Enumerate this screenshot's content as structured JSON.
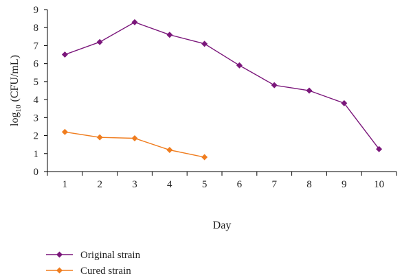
{
  "chart_data": {
    "type": "line",
    "title": "",
    "xlabel": "Day",
    "ylabel": "log10 (CFU/mL)",
    "ylabel_base": "log",
    "ylabel_sub": "10",
    "ylabel_rest": " (CFU/mL)",
    "xlim": [
      0.5,
      10.5
    ],
    "ylim": [
      0,
      9
    ],
    "x_ticks": [
      "1",
      "2",
      "3",
      "4",
      "5",
      "6",
      "7",
      "8",
      "9",
      "10"
    ],
    "y_ticks": [
      "0",
      "1",
      "2",
      "3",
      "4",
      "5",
      "6",
      "7",
      "8",
      "9"
    ],
    "grid": false,
    "legend_position": "bottom-left",
    "series": [
      {
        "name": "Original strain",
        "color": "#7B177B",
        "marker": "diamond",
        "x": [
          1,
          2,
          3,
          4,
          5,
          6,
          7,
          8,
          9,
          10
        ],
        "values": [
          6.5,
          7.2,
          8.3,
          7.6,
          7.1,
          5.9,
          4.8,
          4.5,
          3.8,
          1.25
        ]
      },
      {
        "name": "Cured strain",
        "color": "#F07D1F",
        "marker": "diamond",
        "x": [
          1,
          2,
          3,
          4,
          5
        ],
        "values": [
          2.2,
          1.9,
          1.85,
          1.2,
          0.8
        ]
      }
    ]
  }
}
